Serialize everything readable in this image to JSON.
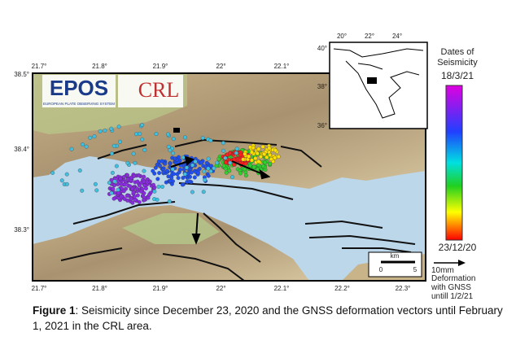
{
  "map": {
    "lon_ticks_top": [
      "21.7°",
      "21.8°",
      "21.9°",
      "22°",
      "22.1°"
    ],
    "lon_ticks_bottom": [
      "21.7°",
      "21.8°",
      "21.9°",
      "22°",
      "22.1°",
      "22.2°",
      "22.3°"
    ],
    "lat_ticks": [
      "38.5°",
      "38.4°",
      "38.3°"
    ],
    "inset": {
      "lon_ticks": [
        "20°",
        "22°",
        "24°"
      ],
      "lat_ticks": [
        "40°",
        "38°",
        "36°"
      ]
    },
    "scale_bar": {
      "unit": "km",
      "start": "0",
      "end": "5"
    }
  },
  "logos": {
    "epos": "EPOS",
    "epos_subtitle": "EUROPEAN PLATE OBSERVING SYSTEM",
    "crl": "CRL"
  },
  "legend": {
    "title": "Dates of Seismicity",
    "max_date": "18/3/21",
    "min_date": "23/12/20",
    "vector_scale": "10mm",
    "vector_label": "Deformation with GNSS untill 1/2/21"
  },
  "caption": {
    "label": "Figure 1",
    "text": ": Seismicity since December 23, 2020 and the GNSS deformation vectors until February 1, 2021 in the CRL area."
  }
}
